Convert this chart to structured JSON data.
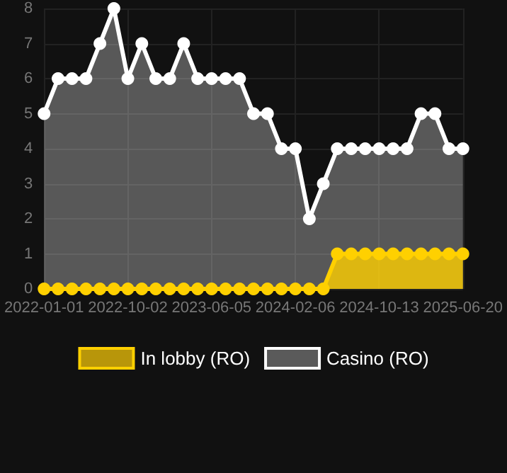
{
  "chart_data": {
    "type": "area",
    "categories": [
      "2022-01-01",
      null,
      null,
      null,
      null,
      null,
      "2022-10-02",
      null,
      null,
      null,
      null,
      null,
      "2023-06-05",
      null,
      null,
      null,
      null,
      null,
      "2024-02-06",
      null,
      null,
      null,
      null,
      null,
      "2024-10-13",
      null,
      null,
      null,
      null,
      null,
      "2025-06-20"
    ],
    "series": [
      {
        "name": "In lobby (RO)",
        "color": "#ffd000",
        "values": [
          0,
          0,
          0,
          0,
          0,
          0,
          0,
          0,
          0,
          0,
          0,
          0,
          0,
          0,
          0,
          0,
          0,
          0,
          0,
          0,
          0,
          1,
          1,
          1,
          1,
          1,
          1,
          1,
          1,
          1,
          1
        ]
      },
      {
        "name": "Casino (RO)",
        "color": "#ffffff",
        "values": [
          5,
          6,
          6,
          6,
          7,
          8,
          6,
          7,
          6,
          6,
          7,
          6,
          6,
          6,
          6,
          5,
          5,
          4,
          4,
          2,
          3,
          4,
          4,
          4,
          4,
          4,
          4,
          5,
          5,
          4,
          4
        ]
      }
    ],
    "ylim": [
      0,
      8
    ],
    "yticks": [
      0,
      1,
      2,
      3,
      4,
      5,
      6,
      7,
      8
    ],
    "grid": true,
    "legend": "bottom",
    "marker": "circle",
    "line_style": "solid"
  }
}
